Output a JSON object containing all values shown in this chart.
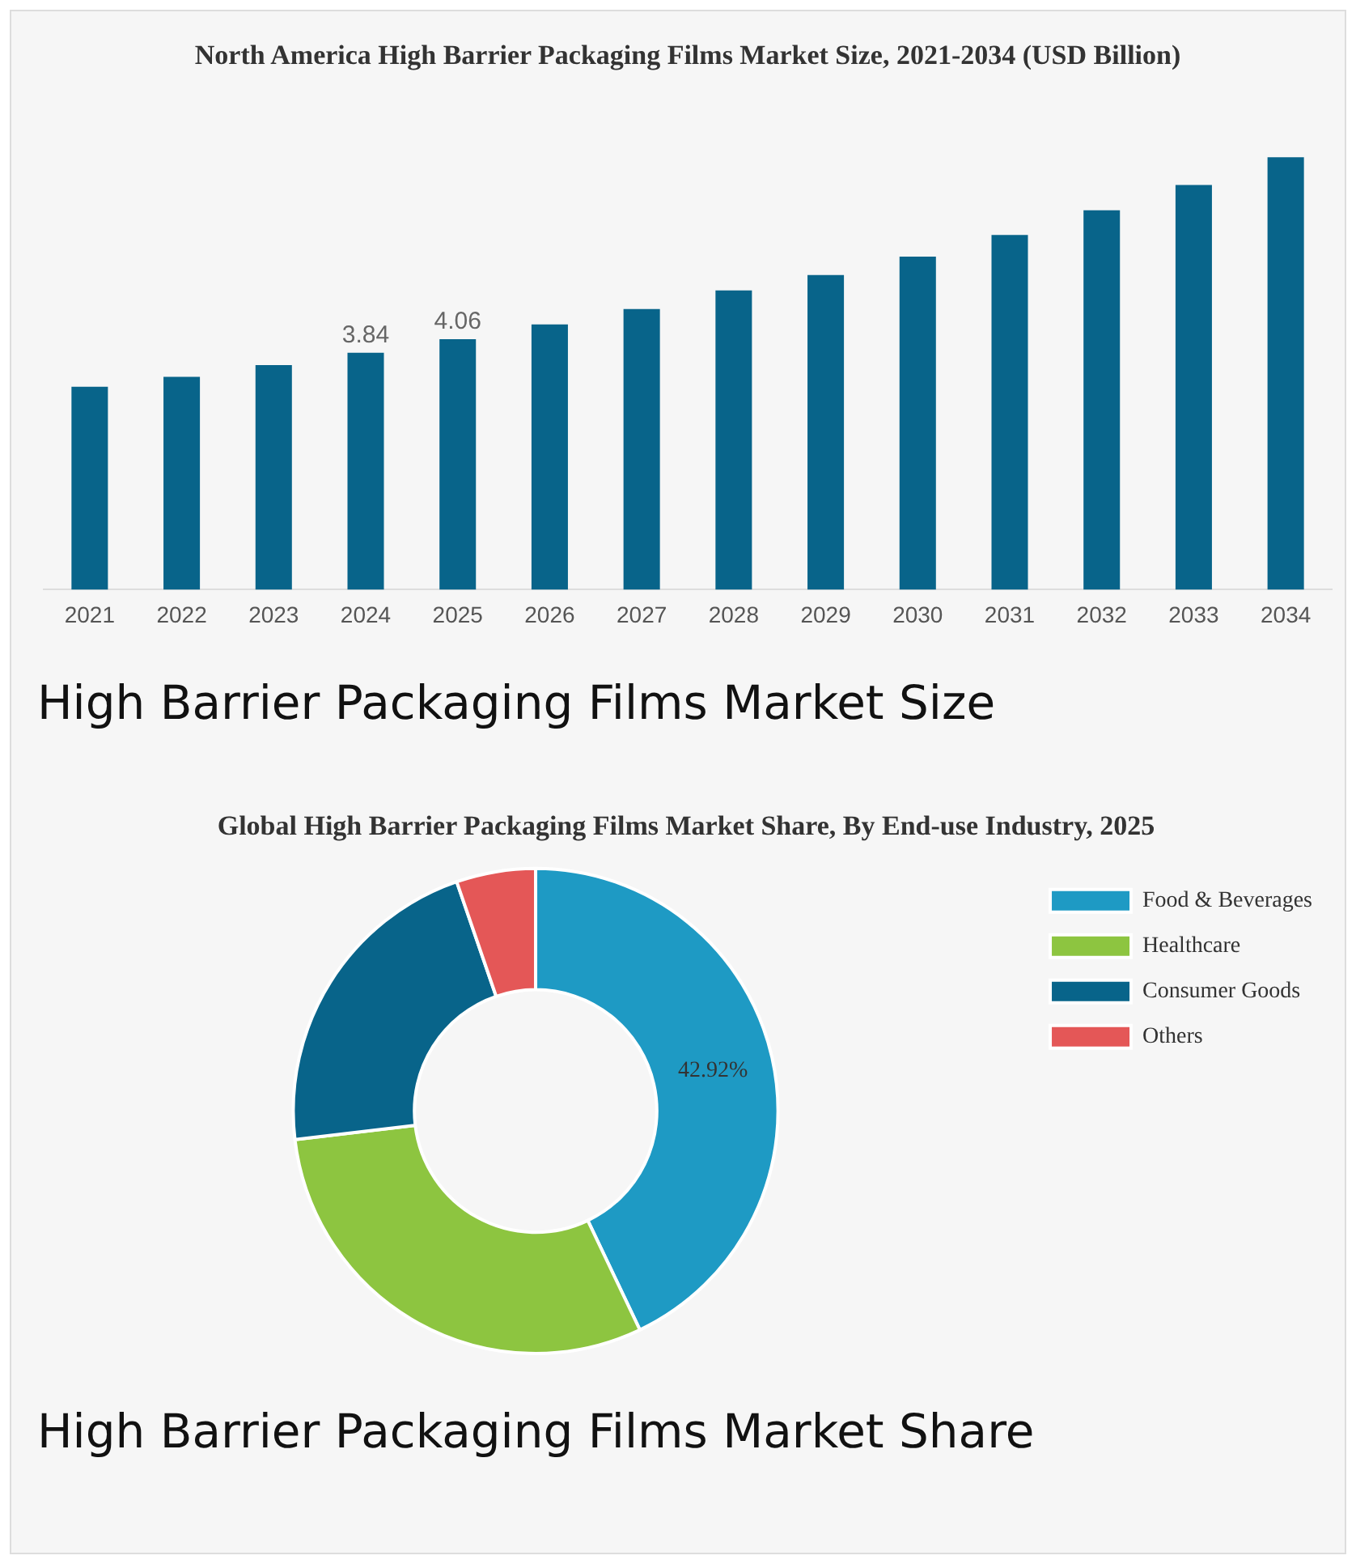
{
  "chart_data": [
    {
      "type": "bar",
      "title": "North America High Barrier Packaging Films Market Size, 2021-2034 (USD Billion)",
      "categories": [
        "2021",
        "2022",
        "2023",
        "2024",
        "2025",
        "2026",
        "2027",
        "2028",
        "2029",
        "2030",
        "2031",
        "2032",
        "2033",
        "2034"
      ],
      "values": [
        3.29,
        3.45,
        3.64,
        3.84,
        4.06,
        4.3,
        4.55,
        4.85,
        5.1,
        5.4,
        5.75,
        6.15,
        6.56,
        7.01
      ],
      "value_labels": [
        null,
        null,
        null,
        "3.84",
        "4.06",
        null,
        null,
        null,
        null,
        null,
        null,
        null,
        null,
        null
      ],
      "color": "#08648a",
      "grid": false,
      "legend": false,
      "tick_labels": "x",
      "annotations": [
        "High Barrier Packaging Films Market Size"
      ]
    },
    {
      "type": "donut",
      "title": "Global High Barrier Packaging Films Market Share, By End-use Industry, 2025",
      "categories": [
        "Food & Beverages",
        "Healthcare",
        "Consumer Goods",
        "Others"
      ],
      "values": [
        42.92,
        30.2,
        21.6,
        5.28
      ],
      "value_labels": [
        "42.92%",
        null,
        null,
        null
      ],
      "colors": [
        "#1e9ac4",
        "#8dc540",
        "#08648a",
        "#e45757"
      ],
      "legend": "top right",
      "annotations": [
        "High Barrier Packaging Films Market Share"
      ]
    }
  ]
}
